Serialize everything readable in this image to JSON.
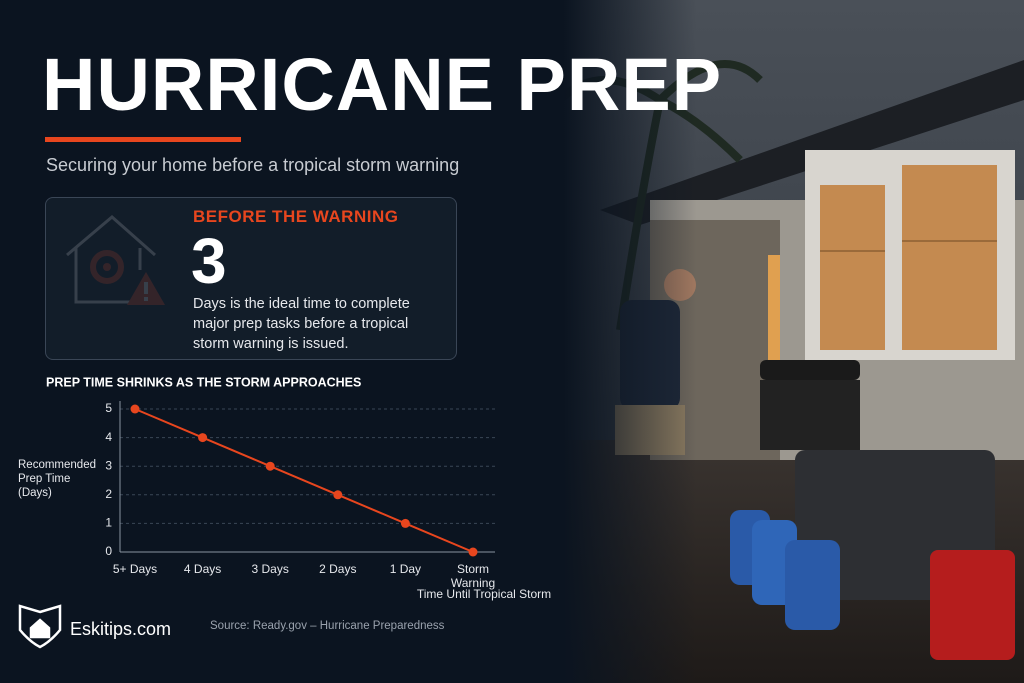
{
  "header": {
    "title": "HURRICANE PREP",
    "subtitle": "Securing your home before a tropical storm warning"
  },
  "stat": {
    "label": "BEFORE THE WARNING",
    "value": 3,
    "text": "Days is the ideal time to complete major prep tasks before a tropical storm warning is issued."
  },
  "chart_data": {
    "type": "line",
    "title": "PREP TIME SHRINKS AS THE STORM APPROACHES",
    "x_label": "Time Until Tropical Storm",
    "y_label": "Recommended Prep Time (Days)",
    "categories": [
      "5+ Days",
      "4 Days",
      "3 Days",
      "2 Days",
      "1 Day",
      "Storm Warning"
    ],
    "values": [
      5,
      4,
      3,
      2,
      1,
      0
    ],
    "color": "#e8461e",
    "ylim": [
      0,
      5
    ],
    "yticks": [
      0,
      1,
      2,
      3,
      4,
      5
    ],
    "grid": true
  },
  "footer": {
    "brand": "Eskitips.com",
    "source": "Source: Ready.gov – Hurricane Preparedness"
  }
}
